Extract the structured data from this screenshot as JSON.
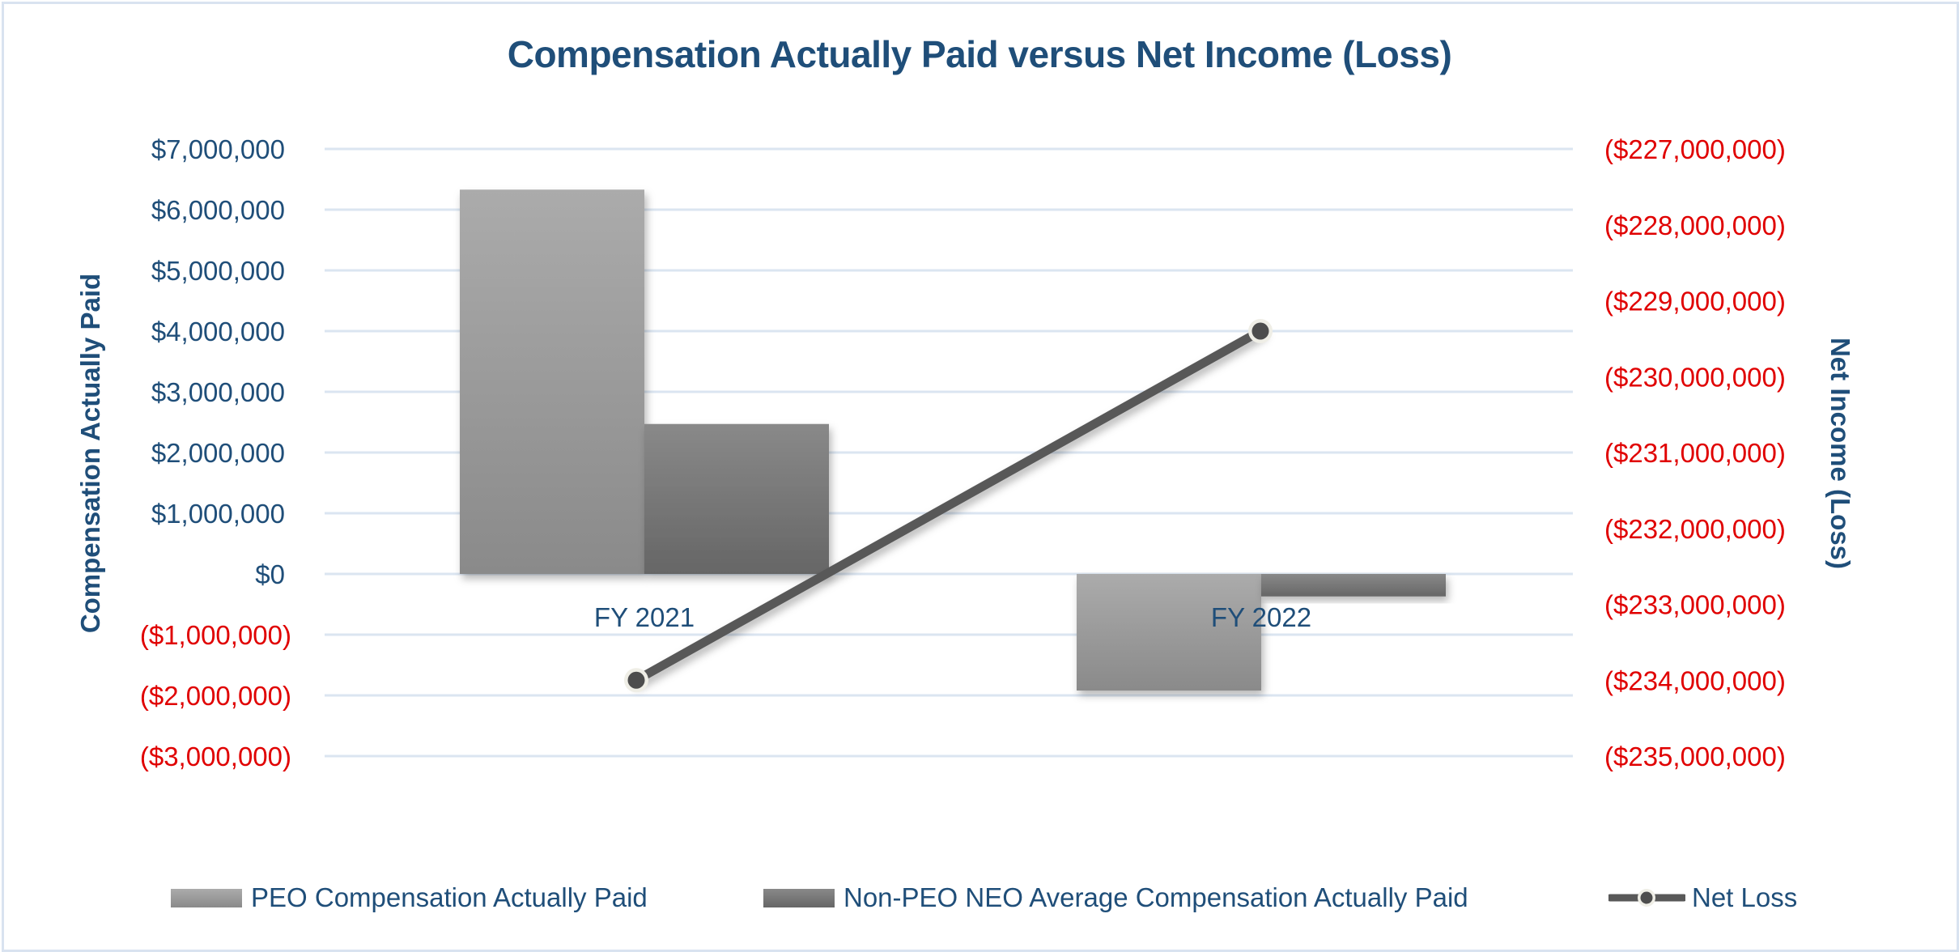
{
  "chart_data": {
    "type": "bar",
    "title": "Compensation Actually Paid versus Net Income (Loss)",
    "xlabel": "",
    "ylabel": "Compensation Actually Paid",
    "y2label": "Net Income (Loss)",
    "categories": [
      "FY 2021",
      "FY 2022"
    ],
    "series": [
      {
        "name": "PEO Compensation Actually Paid",
        "type": "bar",
        "axis": "left",
        "values": [
          6330000,
          -1920000
        ],
        "color_top": "#ababab",
        "color_bottom": "#8a8a8a"
      },
      {
        "name": "Non-PEO NEO Average Compensation Actually Paid",
        "type": "bar",
        "axis": "left",
        "values": [
          2470000,
          -370000
        ],
        "color_top": "#898989",
        "color_bottom": "#666666"
      },
      {
        "name": "Net Loss",
        "type": "line",
        "axis": "right",
        "values": [
          -234000000,
          -229400000
        ],
        "color": "#595959",
        "marker": "circle"
      }
    ],
    "ylim": [
      -3000000,
      7000000
    ],
    "y2lim": [
      -235000000,
      -227000000
    ],
    "yticks": [
      7000000,
      6000000,
      5000000,
      4000000,
      3000000,
      2000000,
      1000000,
      0,
      -1000000,
      -2000000,
      -3000000
    ],
    "ytick_labels": [
      "$7,000,000",
      "$6,000,000",
      "$5,000,000",
      "$4,000,000",
      "$3,000,000",
      "$2,000,000",
      "$1,000,000",
      "$0",
      "($1,000,000)",
      "($2,000,000)",
      "($3,000,000)"
    ],
    "y2ticks": [
      -227000000,
      -228000000,
      -229000000,
      -230000000,
      -231000000,
      -232000000,
      -233000000,
      -234000000,
      -235000000
    ],
    "y2tick_labels": [
      "($227,000,000)",
      "($228,000,000)",
      "($229,000,000)",
      "($230,000,000)",
      "($231,000,000)",
      "($232,000,000)",
      "($233,000,000)",
      "($234,000,000)",
      "($235,000,000)"
    ],
    "grid": true,
    "legend_position": "bottom"
  },
  "colors": {
    "title": "#1f4e79",
    "positive_tick": "#1f4e79",
    "negative_tick": "#e00000",
    "gridline": "#dbe5f1",
    "frame_border": "#d9e3f0"
  },
  "legend": [
    {
      "label": "PEO Compensation Actually Paid",
      "icon": "bar-swatch-light-gray"
    },
    {
      "label": "Non-PEO NEO Average Compensation Actually Paid",
      "icon": "bar-swatch-dark-gray"
    },
    {
      "label": "Net Loss",
      "icon": "line-with-circle-marker"
    }
  ]
}
